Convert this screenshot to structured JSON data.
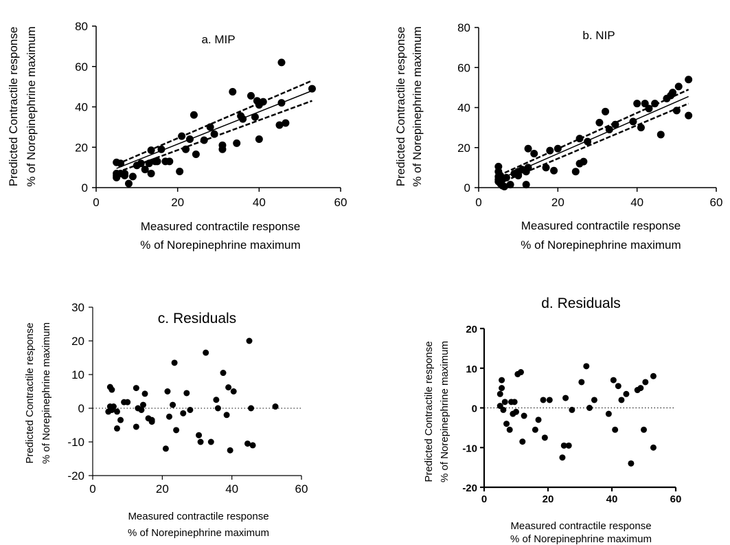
{
  "chart_data": [
    {
      "type": "scatter",
      "title": "a. MIP",
      "xlabel": [
        "Measured contractile response",
        "% of Norepinephrine maximum"
      ],
      "ylabel": [
        "Predicted Contractile response",
        "% of Norepinephrine maximum"
      ],
      "xlim": [
        0,
        60
      ],
      "ylim": [
        0,
        80
      ],
      "xticks": [
        0,
        20,
        40,
        60
      ],
      "yticks": [
        0,
        20,
        40,
        60,
        80
      ],
      "points": [
        [
          5,
          5
        ],
        [
          5,
          6
        ],
        [
          5,
          7
        ],
        [
          5,
          12.5
        ],
        [
          6,
          12
        ],
        [
          6,
          7
        ],
        [
          7,
          6
        ],
        [
          7,
          7
        ],
        [
          8,
          2
        ],
        [
          9,
          5.5
        ],
        [
          10,
          11
        ],
        [
          11,
          12
        ],
        [
          12,
          9
        ],
        [
          13,
          12
        ],
        [
          13.5,
          7
        ],
        [
          13.5,
          18.5
        ],
        [
          14.5,
          13
        ],
        [
          15,
          13
        ],
        [
          16,
          19
        ],
        [
          17,
          13
        ],
        [
          18,
          13
        ],
        [
          20.5,
          8
        ],
        [
          21,
          25.5
        ],
        [
          22,
          19
        ],
        [
          23,
          24
        ],
        [
          24,
          36
        ],
        [
          24.5,
          16.5
        ],
        [
          26.5,
          23.5
        ],
        [
          28,
          30
        ],
        [
          29,
          26.5
        ],
        [
          31,
          19
        ],
        [
          31,
          21
        ],
        [
          33.5,
          47.5
        ],
        [
          34.5,
          22
        ],
        [
          35.5,
          35.5
        ],
        [
          36,
          34
        ],
        [
          38,
          45.5
        ],
        [
          39,
          35
        ],
        [
          39.5,
          43
        ],
        [
          40,
          24
        ],
        [
          40,
          41
        ],
        [
          41,
          42.5
        ],
        [
          45,
          31
        ],
        [
          45.5,
          42
        ],
        [
          45.5,
          62
        ],
        [
          46.5,
          32
        ],
        [
          53,
          49
        ]
      ],
      "fit": {
        "x": [
          5,
          53
        ],
        "y": [
          9.5,
          48
        ]
      },
      "ci_upper": {
        "x": [
          5,
          53
        ],
        "y": [
          11.5,
          53
        ]
      },
      "ci_lower": {
        "x": [
          5,
          53
        ],
        "y": [
          7.5,
          43
        ]
      }
    },
    {
      "type": "scatter",
      "title": "b. NIP",
      "xlabel": [
        "Measured contractile response",
        "% of Norepinephrine maximum"
      ],
      "ylabel": [
        "Predicted Contractile response",
        "% of Norepinephrine maximum"
      ],
      "xlim": [
        0,
        60
      ],
      "ylim": [
        0,
        80
      ],
      "xticks": [
        0,
        20,
        40,
        60
      ],
      "yticks": [
        0,
        20,
        40,
        60,
        80
      ],
      "points": [
        [
          5,
          3
        ],
        [
          5,
          4
        ],
        [
          5,
          5.5
        ],
        [
          5,
          8
        ],
        [
          5,
          10.5
        ],
        [
          5.5,
          2
        ],
        [
          5.5,
          6
        ],
        [
          6,
          1
        ],
        [
          6,
          4
        ],
        [
          6.5,
          0.5
        ],
        [
          7,
          5
        ],
        [
          8,
          1.5
        ],
        [
          9,
          7
        ],
        [
          10,
          8
        ],
        [
          10,
          6
        ],
        [
          11,
          9
        ],
        [
          12,
          1.5
        ],
        [
          12,
          8
        ],
        [
          12.5,
          19.5
        ],
        [
          12.5,
          10
        ],
        [
          14,
          17
        ],
        [
          17,
          10
        ],
        [
          18,
          18.5
        ],
        [
          19,
          8.5
        ],
        [
          20,
          19.5
        ],
        [
          24.5,
          8
        ],
        [
          25.5,
          12
        ],
        [
          25.5,
          24.5
        ],
        [
          26.5,
          13
        ],
        [
          27.5,
          23
        ],
        [
          30.5,
          32.5
        ],
        [
          32,
          38
        ],
        [
          33,
          29
        ],
        [
          34.5,
          31.5
        ],
        [
          39,
          33
        ],
        [
          40,
          42
        ],
        [
          41,
          30
        ],
        [
          42,
          42
        ],
        [
          43,
          39.5
        ],
        [
          44.5,
          42
        ],
        [
          46,
          26.5
        ],
        [
          47.5,
          44.5
        ],
        [
          48.5,
          46
        ],
        [
          49,
          47.5
        ],
        [
          50,
          38.5
        ],
        [
          50.5,
          50.5
        ],
        [
          53,
          36
        ],
        [
          53,
          54
        ]
      ],
      "fit": {
        "x": [
          5,
          53
        ],
        "y": [
          4,
          45.5
        ]
      },
      "ci_upper": {
        "x": [
          5,
          53
        ],
        "y": [
          6,
          49
        ]
      },
      "ci_lower": {
        "x": [
          5,
          53
        ],
        "y": [
          2,
          42
        ]
      }
    },
    {
      "type": "scatter",
      "title": "c. Residuals",
      "xlabel": [
        "Measured contractile response",
        "% of Norepinephrine maximum"
      ],
      "ylabel": [
        "Predicted Contractile response",
        "% of Norepinephrine maximum"
      ],
      "xlim": [
        0,
        60
      ],
      "ylim": [
        -20,
        30
      ],
      "xticks": [
        0,
        20,
        40,
        60
      ],
      "yticks": [
        -20,
        -10,
        0,
        10,
        20,
        30
      ],
      "tick_labels": {
        "y": [
          "-20",
          "-10",
          "0",
          "10",
          "20",
          "30"
        ]
      },
      "zero_line": true,
      "points": [
        [
          4.5,
          -1
        ],
        [
          5,
          6.3
        ],
        [
          5,
          0.5
        ],
        [
          5.5,
          -0.5
        ],
        [
          5.5,
          0
        ],
        [
          5.5,
          5.5
        ],
        [
          6,
          0.5
        ],
        [
          7,
          -6
        ],
        [
          7,
          -1
        ],
        [
          8,
          -3.5
        ],
        [
          9,
          1.8
        ],
        [
          10,
          1.8
        ],
        [
          12.5,
          6
        ],
        [
          12.5,
          -5.5
        ],
        [
          13,
          0
        ],
        [
          14,
          -0.5
        ],
        [
          14.5,
          1
        ],
        [
          15,
          4.3
        ],
        [
          16,
          -3
        ],
        [
          17,
          -3.5
        ],
        [
          17,
          -4
        ],
        [
          21,
          -12
        ],
        [
          21.5,
          5
        ],
        [
          22,
          -2.5
        ],
        [
          23,
          1
        ],
        [
          23.5,
          13.5
        ],
        [
          24,
          -6.5
        ],
        [
          26,
          -1.5
        ],
        [
          27,
          4.5
        ],
        [
          28,
          -0.5
        ],
        [
          30.5,
          -8
        ],
        [
          31,
          -10
        ],
        [
          32.5,
          16.5
        ],
        [
          34,
          -10
        ],
        [
          35.5,
          2.5
        ],
        [
          36,
          0
        ],
        [
          37.5,
          10.5
        ],
        [
          38.5,
          -2
        ],
        [
          39,
          6.2
        ],
        [
          39.5,
          -12.5
        ],
        [
          40.5,
          5
        ],
        [
          44.5,
          -10.5
        ],
        [
          45,
          20
        ],
        [
          45.5,
          0
        ],
        [
          46,
          -11
        ],
        [
          52.5,
          0.5
        ]
      ]
    },
    {
      "type": "scatter",
      "title": "d. Residuals",
      "xlabel": [
        "Measured contractile response",
        "% of Norepinephrine maximum"
      ],
      "ylabel": [
        "Predicted Contractile response",
        "% of Norepinephrine maximum"
      ],
      "xlim": [
        0,
        60
      ],
      "ylim": [
        -20,
        20
      ],
      "xticks": [
        0,
        20,
        40,
        60
      ],
      "yticks": [
        -20,
        -10,
        0,
        10,
        20
      ],
      "tick_labels": {
        "y": [
          "-20",
          "-10",
          "0",
          "10",
          "20"
        ]
      },
      "zero_line": true,
      "points": [
        [
          5,
          3.5
        ],
        [
          5,
          0.5
        ],
        [
          5.5,
          7
        ],
        [
          5.5,
          5
        ],
        [
          6,
          -0.5
        ],
        [
          6.5,
          1.5
        ],
        [
          7,
          -4
        ],
        [
          8,
          -5.5
        ],
        [
          8.5,
          1.5
        ],
        [
          9,
          -1.5
        ],
        [
          9.5,
          1.5
        ],
        [
          10,
          -1
        ],
        [
          10.5,
          8.5
        ],
        [
          11.5,
          9
        ],
        [
          12,
          -8.5
        ],
        [
          12.5,
          -2
        ],
        [
          16,
          -5.5
        ],
        [
          17,
          -3
        ],
        [
          18.5,
          2
        ],
        [
          19,
          -7.5
        ],
        [
          20.5,
          2
        ],
        [
          24.5,
          -12.5
        ],
        [
          25,
          -9.5
        ],
        [
          25.5,
          2.5
        ],
        [
          26.5,
          -9.5
        ],
        [
          27.5,
          -0.5
        ],
        [
          30.5,
          6.5
        ],
        [
          32,
          10.5
        ],
        [
          33,
          0
        ],
        [
          34.5,
          2
        ],
        [
          39,
          -1.5
        ],
        [
          40.5,
          7
        ],
        [
          41,
          -5.5
        ],
        [
          42,
          5.5
        ],
        [
          43,
          2
        ],
        [
          44.5,
          3.5
        ],
        [
          46,
          -14
        ],
        [
          48,
          4.5
        ],
        [
          49,
          5
        ],
        [
          50,
          -5.5
        ],
        [
          50.5,
          6.5
        ],
        [
          53,
          8
        ],
        [
          53,
          -10
        ]
      ]
    }
  ]
}
